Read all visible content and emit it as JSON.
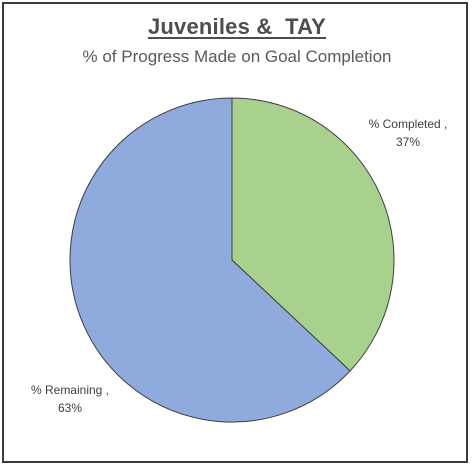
{
  "chart_data": {
    "type": "pie",
    "title": "Juveniles &  TAY",
    "subtitle": "% of Progress Made on Goal Completion",
    "categories": [
      "% Completed",
      "% Remaining"
    ],
    "values": [
      37,
      63
    ],
    "labels": [
      {
        "name": "% Completed ,",
        "value": "37%"
      },
      {
        "name": "% Remaining ,",
        "value": "63%"
      }
    ],
    "colors": [
      "#a9d18e",
      "#8faadc"
    ],
    "start_angle_deg": 0,
    "direction": "clockwise",
    "legend": "none"
  }
}
